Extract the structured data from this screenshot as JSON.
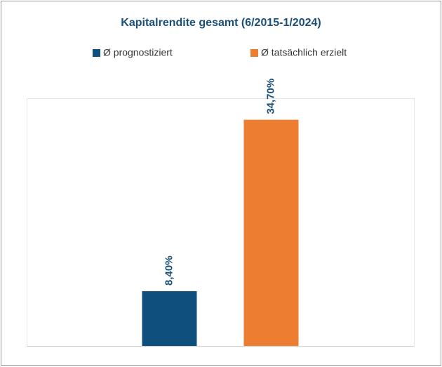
{
  "chart_data": {
    "type": "bar",
    "title": "Kapitalrendite gesamt (6/2015-1/2024)",
    "categories": [
      null
    ],
    "series": [
      {
        "name": "Ø prognostiziert",
        "color": "#0e4f7d",
        "values": [
          8.4
        ],
        "value_labels": [
          "8,40%"
        ]
      },
      {
        "name": "Ø tatsächlich erzielt",
        "color": "#ed7d31",
        "values": [
          34.7
        ],
        "value_labels": [
          "34,70%"
        ]
      }
    ],
    "ylim": [
      0,
      38
    ],
    "legend": "top"
  }
}
